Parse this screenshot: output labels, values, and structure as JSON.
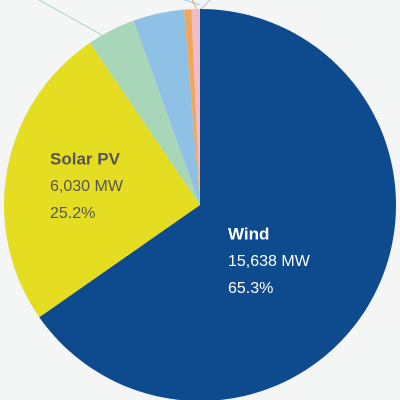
{
  "chart_data": {
    "type": "pie",
    "categories": [
      "Wind",
      "Solar PV",
      null,
      null,
      null,
      null
    ],
    "values": [
      65.3,
      25.2,
      4.0,
      4.2,
      0.6,
      0.7
    ],
    "value_labels": [
      "65.3%",
      "25.2%",
      null,
      null,
      null,
      null
    ],
    "capacity_labels": [
      "15,638 MW",
      "6,030 MW",
      null,
      null,
      null,
      null
    ],
    "colors": [
      "#0e4a8e",
      "#e5dd21",
      "#a7d6b9",
      "#8fc1e7",
      "#f1a65c",
      "#efbcc9"
    ],
    "label_colors": [
      "#ffffff",
      "#555555",
      null,
      null,
      null,
      null
    ]
  }
}
